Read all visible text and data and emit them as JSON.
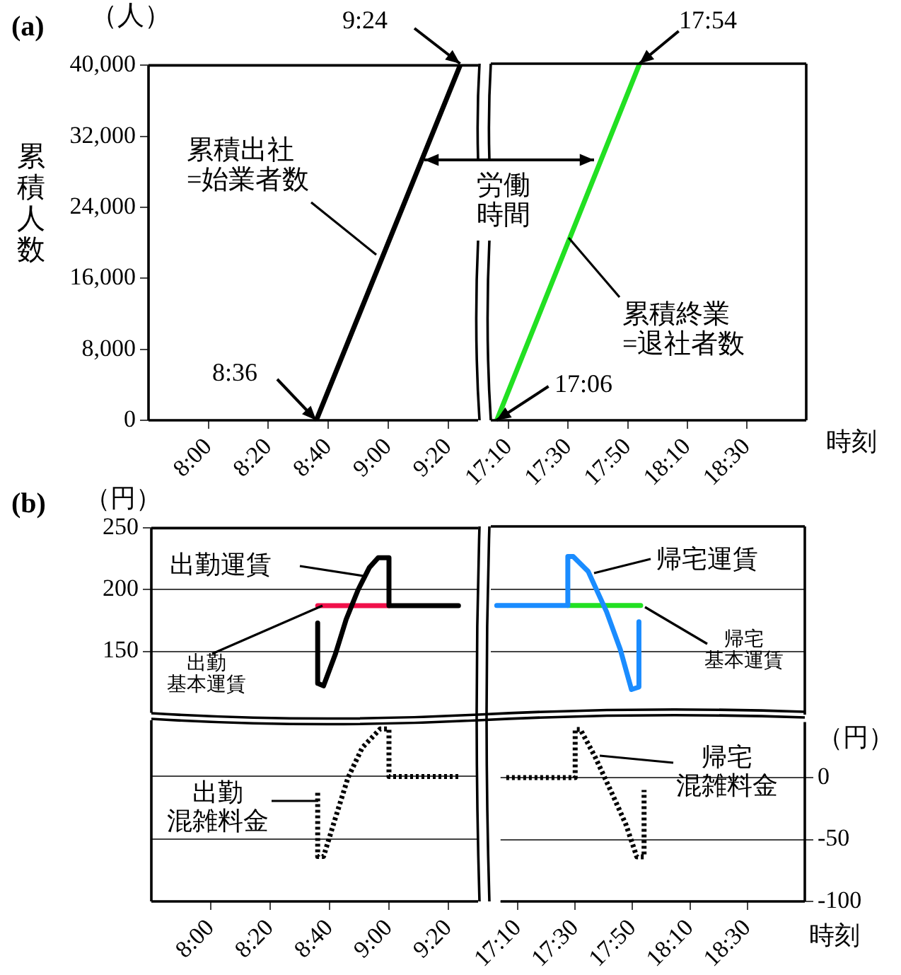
{
  "chart_data": [
    {
      "type": "line",
      "title": "(a)",
      "ylabel": "累積人数",
      "xlim": [
        7.6667,
        9.5
      ],
      "xticks": [
        {
          "value": 8,
          "label": "8:00"
        },
        {
          "value": 8.3333,
          "label": "8:20"
        },
        {
          "value": 8.6667,
          "label": "8:40"
        },
        {
          "value": 9,
          "label": "9:00"
        },
        {
          "value": 9.3333,
          "label": "9:20"
        }
      ],
      "ylim": [
        0,
        40000
      ],
      "yticks": [
        0,
        {
          "value": 8000,
          "label": "8,000"
        },
        {
          "value": 16000,
          "label": "16,000"
        },
        {
          "value": 24000,
          "label": "24,000"
        },
        {
          "value": 32000,
          "label": "32,000"
        },
        {
          "value": 40000,
          "label": "40,000"
        }
      ],
      "annotations": [
        "（人）",
        {
          "text": "8:36",
          "x": 8.6,
          "y": 0
        },
        {
          "text": "9:24",
          "x": 9.4,
          "y": 40000
        },
        "労働時間"
      ],
      "x": [
        8.6,
        9.4
      ],
      "series": [
        {
          "name": "累積出社=始業者数",
          "color": "#000000",
          "values": [
            0,
            40000
          ]
        }
      ]
    },
    {
      "type": "line",
      "xlabel": "時刻",
      "xlim": [
        17.0667,
        18.8333
      ],
      "xticks": [
        {
          "value": 17.1667,
          "label": "17:10"
        },
        {
          "value": 17.5,
          "label": "17:30"
        },
        {
          "value": 17.8333,
          "label": "17:50"
        },
        {
          "value": 18.1667,
          "label": "18:10"
        },
        {
          "value": 18.5,
          "label": "18:30"
        }
      ],
      "ylim": [
        0,
        40000
      ],
      "tick_labels": "x",
      "annotations": [
        {
          "text": "17:06",
          "x": 17.1,
          "y": 0
        },
        {
          "text": "17:54",
          "x": 17.9,
          "y": 40000
        }
      ],
      "x": [
        17.1,
        17.9
      ],
      "series": [
        {
          "name": "累積終業=退社者数",
          "color": "#22e022",
          "values": [
            0,
            40000
          ]
        }
      ]
    },
    {
      "type": "line",
      "title": "(b)",
      "xlim": [
        7.6667,
        9.5
      ],
      "ylim": [
        100,
        250
      ],
      "yticks": [
        150,
        200,
        250
      ],
      "grid": "y",
      "tick_labels": "y",
      "annotations": [
        "（円）"
      ],
      "series": [
        {
          "name": "出勤基本運賃",
          "color": "#f0104a",
          "x": [
            8.6,
            9.0
          ],
          "values": [
            187,
            187
          ]
        },
        {
          "name": "出勤運賃",
          "color": "#000000",
          "x": [
            8.6,
            8.6,
            8.633,
            8.7,
            8.76,
            8.827,
            8.89,
            8.94,
            8.967,
            9.0,
            9.0,
            9.39
          ],
          "values": [
            173,
            124,
            122,
            148,
            176,
            200,
            218,
            226,
            226,
            226,
            187,
            187
          ]
        }
      ]
    },
    {
      "type": "line",
      "xlim": [
        17.0667,
        18.8333
      ],
      "ylim": [
        100,
        250
      ],
      "yticks": [
        150,
        200,
        250
      ],
      "grid": "y",
      "tick_labels": false,
      "series": [
        {
          "name": "帰宅基本運賃",
          "color": "#22e022",
          "x": [
            17.5,
            17.91
          ],
          "values": [
            187,
            187
          ]
        },
        {
          "name": "帰宅運賃",
          "color": "#1a8cff",
          "x": [
            17.1,
            17.5,
            17.5,
            17.53,
            17.615,
            17.718,
            17.795,
            17.858,
            17.9,
            17.9
          ],
          "values": [
            187,
            187,
            226,
            226,
            214,
            182,
            152,
            120,
            122,
            174
          ]
        }
      ]
    },
    {
      "type": "line",
      "xlim": [
        7.6667,
        9.5
      ],
      "xticks": [
        {
          "value": 8,
          "label": "8:00"
        },
        {
          "value": 8.3333,
          "label": "8:20"
        },
        {
          "value": 8.6667,
          "label": "8:40"
        },
        {
          "value": 9,
          "label": "9:00"
        },
        {
          "value": 9.3333,
          "label": "9:20"
        }
      ],
      "ylim": [
        -100,
        45
      ],
      "yticks": [
        -100,
        -50,
        0
      ],
      "grid": "y",
      "tick_labels": "x",
      "line_style": "dotted",
      "series": [
        {
          "name": "出勤混雑料金",
          "color": "#000000",
          "x": [
            8.6,
            8.6,
            8.633,
            8.7,
            8.77,
            8.85,
            8.95,
            9.0,
            9.0,
            9.39
          ],
          "values": [
            -13,
            -64,
            -64,
            -33,
            -1,
            23,
            38,
            38,
            0,
            0
          ]
        }
      ]
    },
    {
      "type": "line",
      "xlabel": "時刻",
      "xlim": [
        17.0667,
        18.8333
      ],
      "xticks": [
        {
          "value": 17.1667,
          "label": "17:10"
        },
        {
          "value": 17.5,
          "label": "17:30"
        },
        {
          "value": 17.8333,
          "label": "17:50"
        },
        {
          "value": 18.1667,
          "label": "18:10"
        },
        {
          "value": 18.5,
          "label": "18:30"
        }
      ],
      "ylim": [
        -100,
        45
      ],
      "yticks": [
        -100,
        -50,
        0
      ],
      "grid": "y",
      "line_style": "dotted",
      "annotations": [
        "（円）"
      ],
      "series": [
        {
          "name": "帰宅混雑料金",
          "color": "#000000",
          "x": [
            17.1,
            17.5,
            17.5,
            17.53,
            17.615,
            17.718,
            17.795,
            17.858,
            17.9,
            17.9
          ],
          "values": [
            0,
            0,
            39,
            39,
            17,
            -14,
            -38,
            -64,
            -64,
            -10
          ]
        }
      ]
    }
  ]
}
